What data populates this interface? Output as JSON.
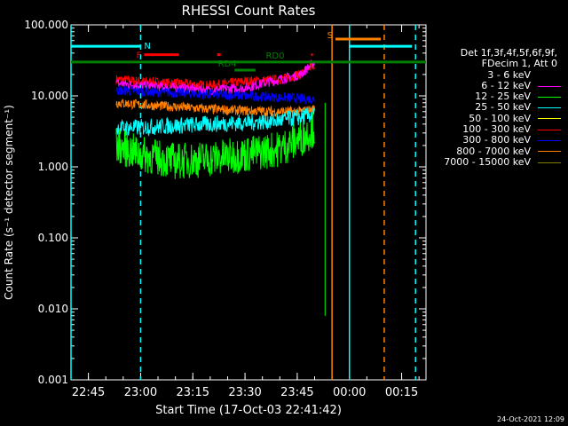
{
  "chart_data": {
    "type": "line",
    "title": "RHESSI Count Rates",
    "xlabel": "Start Time (17-Oct-03 22:41:42)",
    "ylabel": "Count Rate (s⁻¹ detector segment⁻¹)",
    "xlim": [
      "22:40",
      "00:22"
    ],
    "ylim": [
      0.001,
      100
    ],
    "yscale": "log",
    "x_tick_labels": [
      "22:45",
      "23:00",
      "23:15",
      "23:30",
      "23:45",
      "00:00",
      "00:15"
    ],
    "y_tick_labels": [
      "0.001",
      "0.010",
      "0.100",
      "1.000",
      "10.000",
      "100.000"
    ],
    "legend_header": [
      "Det 1f,3f,4f,5f,6f,9f,",
      "FDecim 1, Att 0"
    ],
    "legend_position": "right",
    "series": [
      {
        "name": "3 - 6 keV",
        "color": "#000000"
      },
      {
        "name": "6 - 12 keV",
        "color": "#ff00ff"
      },
      {
        "name": "12 - 25 keV",
        "color": "#00ff00"
      },
      {
        "name": "25 - 50 keV",
        "color": "#00ffff"
      },
      {
        "name": "50 - 100 keV",
        "color": "#ffff00"
      },
      {
        "name": "100 - 300 keV",
        "color": "#ff0000"
      },
      {
        "name": "300 - 800 keV",
        "color": "#0000ff"
      },
      {
        "name": "800 - 7000 keV",
        "color": "#ff8000"
      },
      {
        "name": "7000 - 15000 keV",
        "color": "#808000"
      }
    ],
    "series_data": [
      {
        "name": "100 - 300 keV",
        "x": [
          "22:53",
          "23:00",
          "23:10",
          "23:20",
          "23:30",
          "23:40",
          "23:46",
          "23:50"
        ],
        "y": [
          17,
          16,
          15,
          14,
          16,
          17,
          20,
          28
        ]
      },
      {
        "name": "6 - 12 keV",
        "x": [
          "22:53",
          "23:00",
          "23:10",
          "23:20",
          "23:30",
          "23:40",
          "23:46",
          "23:50"
        ],
        "y": [
          15,
          14,
          13,
          12,
          13,
          17,
          20,
          30
        ]
      },
      {
        "name": "300 - 800 keV",
        "x": [
          "22:53",
          "23:00",
          "23:10",
          "23:20",
          "23:30",
          "23:40",
          "23:46",
          "23:50"
        ],
        "y": [
          12,
          11.5,
          11,
          10.5,
          10,
          9.5,
          9.2,
          9
        ]
      },
      {
        "name": "800 - 7000 keV",
        "x": [
          "22:53",
          "23:00",
          "23:10",
          "23:20",
          "23:30",
          "23:40",
          "23:46",
          "23:50"
        ],
        "y": [
          8,
          7.5,
          7,
          6.5,
          6.2,
          6,
          6,
          6.5
        ]
      },
      {
        "name": "25 - 50 keV",
        "x": [
          "22:53",
          "23:00",
          "23:10",
          "23:20",
          "23:30",
          "23:40",
          "23:46",
          "23:50"
        ],
        "y": [
          3.5,
          3.6,
          3.8,
          4,
          4.2,
          4.5,
          5,
          5.5
        ]
      },
      {
        "name": "3 - 6 keV",
        "x": [
          "22:53",
          "23:00",
          "23:10",
          "23:20",
          "23:30",
          "23:40"
        ],
        "y": [
          2.2,
          2.0,
          1.9,
          1.8,
          1.9,
          2.0
        ]
      },
      {
        "name": "12 - 25 keV",
        "x": [
          "22:53",
          "23:00",
          "23:10",
          "23:20",
          "23:30",
          "23:40",
          "23:46",
          "23:50"
        ],
        "y": [
          2,
          1.5,
          1.2,
          1.3,
          1.5,
          1.8,
          2.5,
          3.5
        ]
      }
    ],
    "annotations": [
      {
        "label": "N",
        "color": "#00ffff",
        "x_range": [
          "22:40",
          "23:00"
        ],
        "y": 50
      },
      {
        "label": "F",
        "color": "#ff0000",
        "x_range": [
          "23:01",
          "23:11"
        ],
        "y": 38
      },
      {
        "label": "",
        "color": "#ff0000",
        "x_range": [
          "23:22",
          "23:23"
        ],
        "y": 38
      },
      {
        "label": "",
        "color": "#ff0000",
        "x_range": [
          "23:49",
          "23:49.5"
        ],
        "y": 38
      },
      {
        "label": "RD0",
        "color": "#008000",
        "x_range": [
          "22:40",
          "00:22"
        ],
        "y": 30
      },
      {
        "label": "RD4",
        "color": "#008000",
        "x_range": [
          "23:27",
          "23:33"
        ],
        "y": 23
      },
      {
        "label": "S",
        "color": "#ff8000",
        "x_range": [
          "23:56",
          "00:09"
        ],
        "y": 63
      },
      {
        "label": "",
        "color": "#00ffff",
        "x_range": [
          "00:00",
          "00:18"
        ],
        "y": 50
      }
    ],
    "vertical_lines": [
      {
        "x": "22:40",
        "color": "#00ffff",
        "style": "solid"
      },
      {
        "x": "23:00",
        "color": "#00ffff",
        "style": "dashed"
      },
      {
        "x": "23:55",
        "color": "#ff8000",
        "style": "solid"
      },
      {
        "x": "00:00",
        "color": "#00ffff",
        "style": "solid"
      },
      {
        "x": "00:10",
        "color": "#ff8000",
        "style": "dashed"
      },
      {
        "x": "00:19",
        "color": "#00ffff",
        "style": "dashed"
      }
    ],
    "grid": false
  },
  "timestamp": "24-Oct-2021 12:09"
}
